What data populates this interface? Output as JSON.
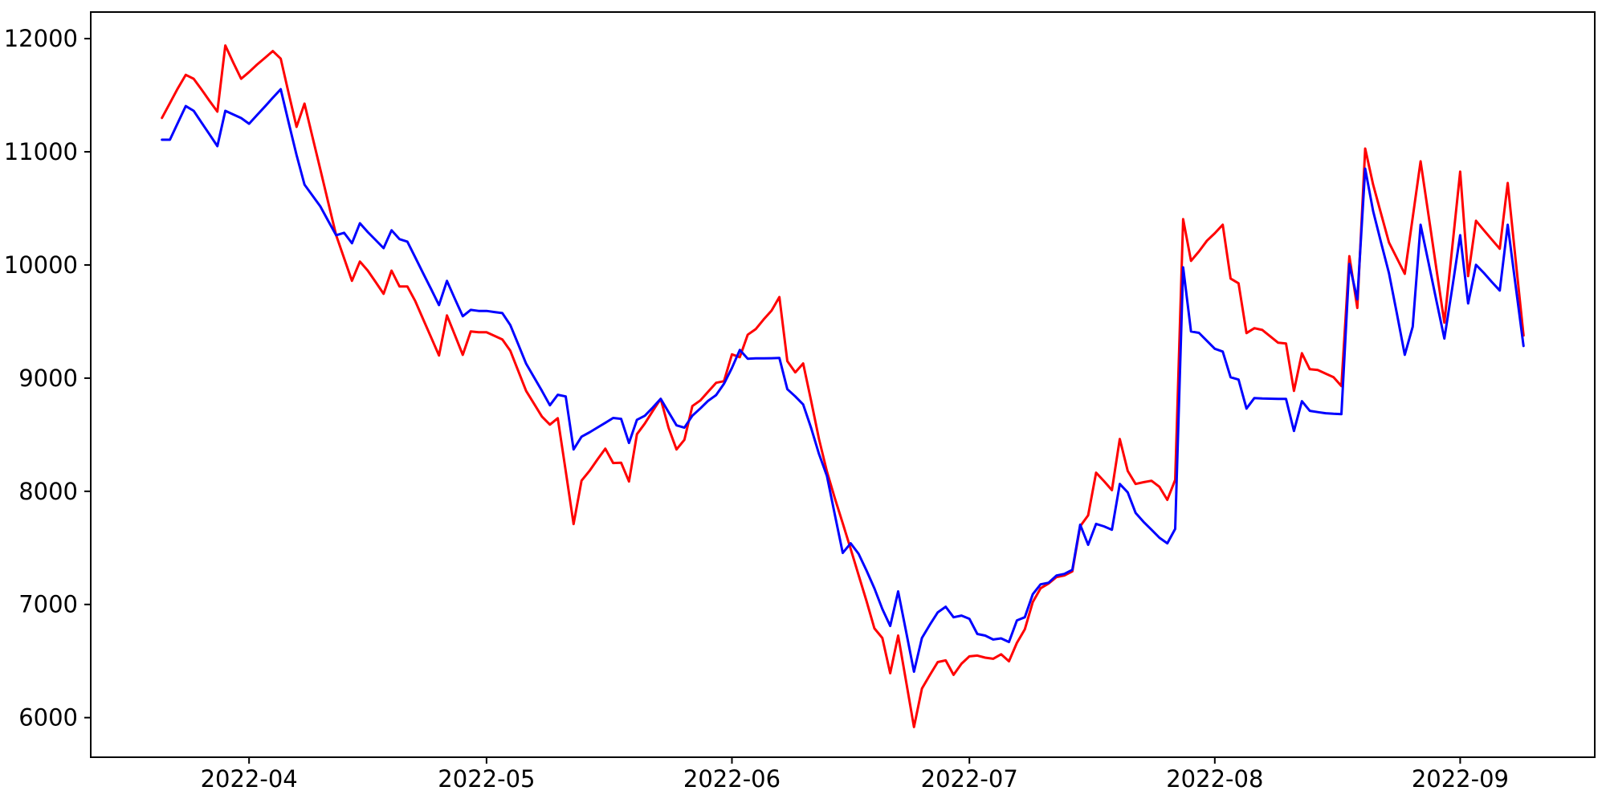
{
  "chart_data": {
    "type": "line",
    "title": "",
    "xlabel": "",
    "ylabel": "",
    "grid": false,
    "legend": null,
    "background": "#ffffff",
    "axis_color": "#000000",
    "x_tick_labels": [
      "2022-04",
      "2022-05",
      "2022-06",
      "2022-07",
      "2022-08",
      "2022-09"
    ],
    "x_tick_dates": [
      "2022-04-01",
      "2022-05-01",
      "2022-06-01",
      "2022-07-01",
      "2022-08-01",
      "2022-09-01"
    ],
    "y_tick_values": [
      6000,
      7000,
      8000,
      9000,
      10000,
      11000,
      12000
    ],
    "y_tick_labels": [
      "6000",
      "7000",
      "8000",
      "9000",
      "10000",
      "11000",
      "12000"
    ],
    "xlim": [
      "2022-03-12",
      "2022-09-18"
    ],
    "ylim": [
      5650,
      12235
    ],
    "x": [
      "2022-03-21",
      "2022-03-22",
      "2022-03-23",
      "2022-03-24",
      "2022-03-25",
      "2022-03-26",
      "2022-03-27",
      "2022-03-28",
      "2022-03-29",
      "2022-03-30",
      "2022-03-31",
      "2022-04-01",
      "2022-04-02",
      "2022-04-03",
      "2022-04-04",
      "2022-04-05",
      "2022-04-06",
      "2022-04-07",
      "2022-04-08",
      "2022-04-09",
      "2022-04-10",
      "2022-04-11",
      "2022-04-12",
      "2022-04-13",
      "2022-04-14",
      "2022-04-15",
      "2022-04-16",
      "2022-04-17",
      "2022-04-18",
      "2022-04-19",
      "2022-04-20",
      "2022-04-21",
      "2022-04-22",
      "2022-04-23",
      "2022-04-24",
      "2022-04-25",
      "2022-04-26",
      "2022-04-27",
      "2022-04-28",
      "2022-04-29",
      "2022-04-30",
      "2022-05-01",
      "2022-05-02",
      "2022-05-03",
      "2022-05-04",
      "2022-05-05",
      "2022-05-06",
      "2022-05-07",
      "2022-05-08",
      "2022-05-09",
      "2022-05-10",
      "2022-05-11",
      "2022-05-12",
      "2022-05-13",
      "2022-05-14",
      "2022-05-15",
      "2022-05-16",
      "2022-05-17",
      "2022-05-18",
      "2022-05-19",
      "2022-05-20",
      "2022-05-21",
      "2022-05-22",
      "2022-05-23",
      "2022-05-24",
      "2022-05-25",
      "2022-05-26",
      "2022-05-27",
      "2022-05-28",
      "2022-05-29",
      "2022-05-30",
      "2022-05-31",
      "2022-06-01",
      "2022-06-02",
      "2022-06-03",
      "2022-06-04",
      "2022-06-05",
      "2022-06-06",
      "2022-06-07",
      "2022-06-08",
      "2022-06-09",
      "2022-06-10",
      "2022-06-11",
      "2022-06-12",
      "2022-06-13",
      "2022-06-14",
      "2022-06-15",
      "2022-06-16",
      "2022-06-17",
      "2022-06-18",
      "2022-06-19",
      "2022-06-20",
      "2022-06-21",
      "2022-06-22",
      "2022-06-23",
      "2022-06-24",
      "2022-06-25",
      "2022-06-26",
      "2022-06-27",
      "2022-06-28",
      "2022-06-29",
      "2022-06-30",
      "2022-07-01",
      "2022-07-02",
      "2022-07-03",
      "2022-07-04",
      "2022-07-05",
      "2022-07-06",
      "2022-07-07",
      "2022-07-08",
      "2022-07-09",
      "2022-07-10",
      "2022-07-11",
      "2022-07-12",
      "2022-07-13",
      "2022-07-14",
      "2022-07-15",
      "2022-07-16",
      "2022-07-17",
      "2022-07-18",
      "2022-07-19",
      "2022-07-20",
      "2022-07-21",
      "2022-07-22",
      "2022-07-23",
      "2022-07-24",
      "2022-07-25",
      "2022-07-26",
      "2022-07-27",
      "2022-07-28",
      "2022-07-29",
      "2022-07-30",
      "2022-07-31",
      "2022-08-01",
      "2022-08-02",
      "2022-08-03",
      "2022-08-04",
      "2022-08-05",
      "2022-08-06",
      "2022-08-07",
      "2022-08-08",
      "2022-08-09",
      "2022-08-10",
      "2022-08-11",
      "2022-08-12",
      "2022-08-13",
      "2022-08-14",
      "2022-08-15",
      "2022-08-16",
      "2022-08-17",
      "2022-08-18",
      "2022-08-19",
      "2022-08-20",
      "2022-08-21",
      "2022-08-22",
      "2022-08-23",
      "2022-08-24",
      "2022-08-25",
      "2022-08-26",
      "2022-08-27",
      "2022-08-28",
      "2022-08-29",
      "2022-08-30",
      "2022-08-31",
      "2022-09-01",
      "2022-09-02",
      "2022-09-03",
      "2022-09-04",
      "2022-09-05",
      "2022-09-06",
      "2022-09-07",
      "2022-09-08",
      "2022-09-09"
    ],
    "series": [
      {
        "name": "series-red",
        "color": "#ff0000",
        "values": [
          11300,
          11430,
          11560,
          11680,
          11645,
          11550,
          11450,
          11355,
          11940,
          11790,
          11645,
          11705,
          11770,
          11830,
          11890,
          11823,
          11520,
          11220,
          11426,
          11135,
          10845,
          10554,
          10263,
          10060,
          9860,
          10030,
          9950,
          9848,
          9745,
          9950,
          9810,
          9810,
          9680,
          9520,
          9360,
          9200,
          9554,
          9380,
          9206,
          9412,
          9405,
          9405,
          9373,
          9341,
          9242,
          9065,
          8887,
          8774,
          8660,
          8589,
          8646,
          8180,
          7711,
          8094,
          8179,
          8280,
          8377,
          8250,
          8253,
          8087,
          8505,
          8600,
          8710,
          8817,
          8560,
          8370,
          8455,
          8753,
          8803,
          8880,
          8959,
          8973,
          9210,
          9185,
          9384,
          9433,
          9518,
          9596,
          9717,
          9150,
          9051,
          9130,
          8800,
          8462,
          8175,
          7940,
          7717,
          7490,
          7260,
          7030,
          6789,
          6704,
          6392,
          6725,
          6320,
          5917,
          6257,
          6375,
          6491,
          6506,
          6378,
          6477,
          6541,
          6548,
          6530,
          6520,
          6560,
          6498,
          6661,
          6780,
          7020,
          7143,
          7185,
          7242,
          7256,
          7292,
          7691,
          7788,
          8164,
          8090,
          8010,
          8462,
          8180,
          8065,
          8080,
          8093,
          8040,
          7924,
          8101,
          10405,
          10036,
          10120,
          10214,
          10280,
          10355,
          9880,
          9838,
          9398,
          9441,
          9426,
          9370,
          9313,
          9306,
          8887,
          9220,
          9079,
          9072,
          9040,
          9008,
          8930,
          10078,
          9620,
          11029,
          10710,
          10455,
          10199,
          10060,
          9922,
          10420,
          10916,
          10440,
          9965,
          9490,
          10160,
          10824,
          9901,
          10391,
          10306,
          10225,
          10143,
          10724,
          10050,
          9377
        ]
      },
      {
        "name": "series-blue",
        "color": "#0000ff",
        "values": [
          11107,
          11107,
          11255,
          11404,
          11362,
          11258,
          11154,
          11050,
          11362,
          11330,
          11298,
          11248,
          11324,
          11400,
          11477,
          11553,
          11260,
          10972,
          10710,
          10614,
          10518,
          10390,
          10263,
          10284,
          10192,
          10369,
          10291,
          10220,
          10149,
          10306,
          10228,
          10206,
          10066,
          9926,
          9786,
          9646,
          9859,
          9700,
          9547,
          9603,
          9594,
          9594,
          9584,
          9575,
          9469,
          9300,
          9128,
          9008,
          8887,
          8760,
          8853,
          8838,
          8370,
          8483,
          8520,
          8563,
          8605,
          8648,
          8640,
          8427,
          8632,
          8668,
          8740,
          8817,
          8700,
          8583,
          8562,
          8668,
          8732,
          8800,
          8850,
          8950,
          9090,
          9249,
          9171,
          9175,
          9175,
          9176,
          9178,
          8902,
          8838,
          8767,
          8560,
          8330,
          8136,
          7795,
          7455,
          7540,
          7448,
          7300,
          7143,
          6960,
          6810,
          7115,
          6760,
          6406,
          6704,
          6820,
          6930,
          6980,
          6887,
          6902,
          6873,
          6739,
          6725,
          6690,
          6700,
          6668,
          6859,
          6887,
          7090,
          7178,
          7192,
          7256,
          7270,
          7306,
          7705,
          7527,
          7712,
          7690,
          7660,
          8065,
          7990,
          7809,
          7730,
          7660,
          7590,
          7540,
          7668,
          9979,
          9412,
          9400,
          9330,
          9260,
          9235,
          9008,
          8987,
          8731,
          8824,
          8820,
          8818,
          8817,
          8817,
          8533,
          8796,
          8711,
          8700,
          8690,
          8685,
          8682,
          10008,
          9696,
          10851,
          10476,
          10200,
          9929,
          9570,
          9206,
          9455,
          10355,
          10020,
          9685,
          9350,
          9800,
          10263,
          9660,
          10001,
          9929,
          9850,
          9774,
          10355,
          9820,
          9284
        ]
      }
    ]
  }
}
